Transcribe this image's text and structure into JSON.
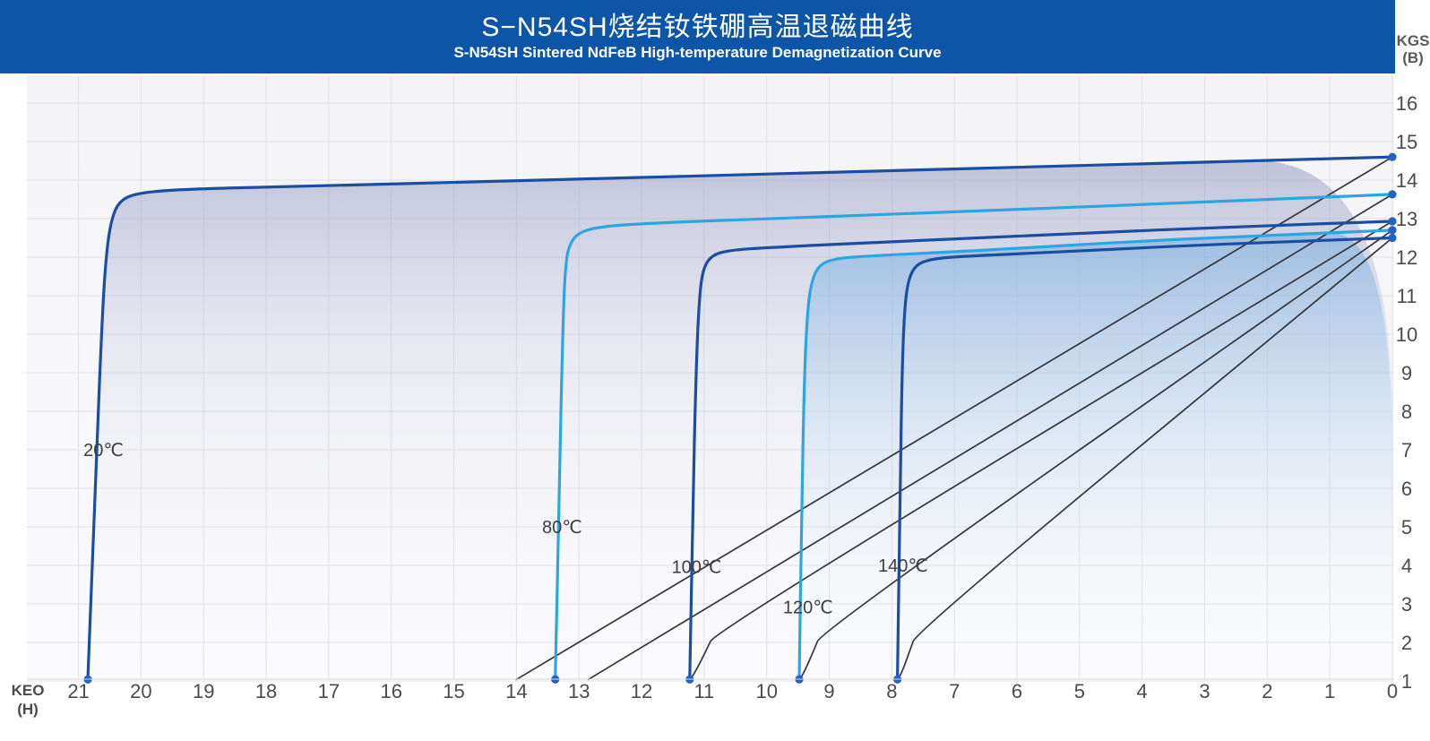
{
  "header": {
    "title": "S−N54SH烧结钕铁硼高温退磁曲线",
    "subtitle": "S-N54SH Sintered NdFeB High-temperature Demagnetization Curve",
    "bg_color": "#0d55a6"
  },
  "axis_labels": {
    "x_line1": "KEO",
    "x_line2": "(H)",
    "y_line1": "KGS",
    "y_line2": "(B)"
  },
  "colors": {
    "dark_blue_curve": "#1b4da1",
    "light_blue_curve": "#2ba6e0",
    "normal_curve_black": "#35363c",
    "endpoint_dot": "#2262c5",
    "grid_line": "#e1e1e6",
    "plot_bg_top": "#f4f4f6",
    "plot_bg_bottom": "#fafafc",
    "axis_text": "#4a4b4d",
    "temp_label_text": "#3c3d40",
    "bottom_edge_line": "#d7d7dc"
  },
  "chart_data": {
    "type": "line",
    "title": "S−N54SH烧结钕铁硼高温退磁曲线",
    "subtitle": "S-N54SH Sintered NdFeB High-temperature Demagnetization Curve",
    "xlabel": "KEO (H)",
    "ylabel": "KGS (B)",
    "x_axis_reversed": true,
    "x_range": [
      0,
      21.8
    ],
    "y_range": [
      1.0,
      16.7
    ],
    "grid": true,
    "legend_position": "none",
    "x_ticks": [
      21,
      20,
      19,
      18,
      17,
      16,
      15,
      14,
      13,
      12,
      11,
      10,
      9,
      8,
      7,
      6,
      5,
      4,
      3,
      2,
      1,
      0
    ],
    "y_ticks": [
      16,
      15,
      14,
      13,
      12,
      11,
      10,
      9,
      8,
      7,
      6,
      5,
      4,
      3,
      2,
      1
    ],
    "series": [
      {
        "name": "20℃",
        "temp_c": 20,
        "color_key": "dark_blue_curve",
        "br_kgs": 14.6,
        "hcj_keo": 20.85,
        "fill": "lavender",
        "label_pos": [
          20.6,
          7.0
        ],
        "intrinsic": [
          [
            20.85,
            1.04
          ],
          [
            20.72,
            6.5
          ],
          [
            20.62,
            10.5
          ],
          [
            20.55,
            12.2
          ],
          [
            20.47,
            13.0
          ],
          [
            20.35,
            13.45
          ],
          [
            20.08,
            13.66
          ],
          [
            19.4,
            13.76
          ],
          [
            17.5,
            13.84
          ],
          [
            14,
            13.98
          ],
          [
            9,
            14.2
          ],
          [
            4.5,
            14.4
          ],
          [
            0,
            14.6
          ]
        ],
        "normal": [
          [
            14.0,
            1.04
          ],
          [
            0,
            14.6
          ]
        ]
      },
      {
        "name": "80℃",
        "temp_c": 80,
        "color_key": "light_blue_curve",
        "br_kgs": 13.63,
        "hcj_keo": 13.38,
        "fill": "none",
        "label_pos": [
          13.27,
          5.0
        ],
        "intrinsic": [
          [
            13.38,
            1.04
          ],
          [
            13.32,
            5.5
          ],
          [
            13.27,
            9.5
          ],
          [
            13.22,
            11.9
          ],
          [
            13.12,
            12.45
          ],
          [
            12.95,
            12.68
          ],
          [
            12.6,
            12.8
          ],
          [
            12.0,
            12.87
          ],
          [
            10.5,
            12.97
          ],
          [
            7,
            13.17
          ],
          [
            3.5,
            13.4
          ],
          [
            0,
            13.63
          ]
        ],
        "normal": [
          [
            12.85,
            1.04
          ],
          [
            0,
            13.63
          ]
        ]
      },
      {
        "name": "100℃",
        "temp_c": 100,
        "color_key": "dark_blue_curve",
        "br_kgs": 12.93,
        "hcj_keo": 11.23,
        "fill": "none",
        "label_pos": [
          11.12,
          3.97
        ],
        "intrinsic": [
          [
            11.23,
            1.04
          ],
          [
            11.18,
            5.5
          ],
          [
            11.13,
            9.0
          ],
          [
            11.08,
            10.9
          ],
          [
            11.02,
            11.7
          ],
          [
            10.88,
            12.05
          ],
          [
            10.6,
            12.18
          ],
          [
            10.0,
            12.25
          ],
          [
            8,
            12.4
          ],
          [
            5,
            12.62
          ],
          [
            2.5,
            12.79
          ],
          [
            0,
            12.93
          ]
        ],
        "normal": [
          [
            11.22,
            1.04
          ],
          [
            11.12,
            1.3
          ],
          [
            10.98,
            1.75
          ],
          [
            10.82,
            2.3
          ],
          [
            0,
            12.93
          ]
        ]
      },
      {
        "name": "120℃",
        "temp_c": 120,
        "color_key": "light_blue_curve",
        "br_kgs": 12.7,
        "hcj_keo": 9.48,
        "fill": "blue",
        "label_pos": [
          9.34,
          2.92
        ],
        "intrinsic": [
          [
            9.48,
            1.04
          ],
          [
            9.44,
            5.5
          ],
          [
            9.4,
            8.8
          ],
          [
            9.35,
            10.6
          ],
          [
            9.28,
            11.4
          ],
          [
            9.16,
            11.8
          ],
          [
            8.92,
            11.96
          ],
          [
            8.4,
            12.03
          ],
          [
            6.5,
            12.18
          ],
          [
            4,
            12.42
          ],
          [
            2,
            12.56
          ],
          [
            0,
            12.7
          ]
        ],
        "normal": [
          [
            9.47,
            1.04
          ],
          [
            9.38,
            1.3
          ],
          [
            9.26,
            1.75
          ],
          [
            9.12,
            2.3
          ],
          [
            0,
            12.7
          ]
        ]
      },
      {
        "name": "140℃",
        "temp_c": 140,
        "color_key": "dark_blue_curve",
        "br_kgs": 12.5,
        "hcj_keo": 7.91,
        "fill": "none",
        "label_pos": [
          7.82,
          4.0
        ],
        "intrinsic": [
          [
            7.91,
            1.04
          ],
          [
            7.87,
            5.5
          ],
          [
            7.84,
            8.8
          ],
          [
            7.8,
            10.6
          ],
          [
            7.74,
            11.4
          ],
          [
            7.62,
            11.8
          ],
          [
            7.38,
            11.95
          ],
          [
            6.9,
            12.02
          ],
          [
            5.5,
            12.12
          ],
          [
            3,
            12.32
          ],
          [
            1.5,
            12.41
          ],
          [
            0,
            12.5
          ]
        ],
        "normal": [
          [
            7.9,
            1.04
          ],
          [
            7.82,
            1.3
          ],
          [
            7.72,
            1.75
          ],
          [
            7.6,
            2.3
          ],
          [
            0,
            12.5
          ]
        ]
      }
    ]
  }
}
